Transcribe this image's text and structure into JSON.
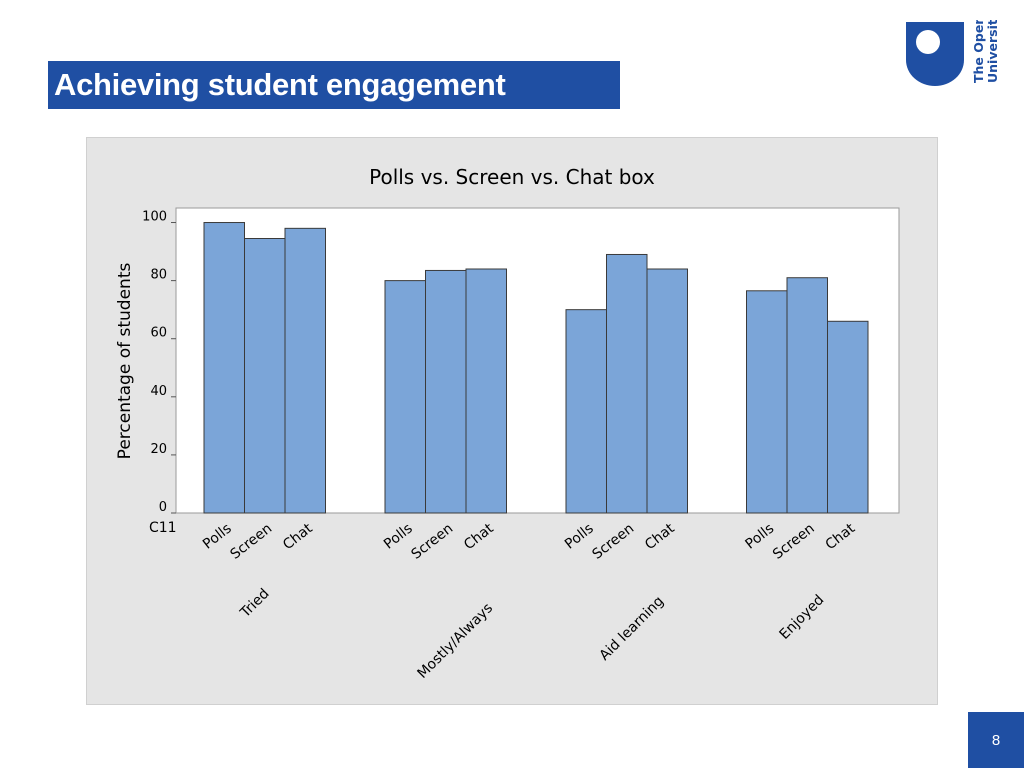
{
  "slide": {
    "title": "Achieving student engagement",
    "page_number": "8",
    "logo_text": [
      "The Open",
      "University"
    ],
    "colors": {
      "brand_blue": "#1f4fa3",
      "bar_fill": "#7ba5d8",
      "panel_bg": "#e5e5e5"
    }
  },
  "chart_data": {
    "type": "bar",
    "title": "Polls vs. Screen vs. Chat box",
    "ylabel": "Percentage of students",
    "xlabel": "C11",
    "ylim": [
      0,
      105
    ],
    "yticks": [
      0,
      20,
      40,
      60,
      80,
      100
    ],
    "grid": false,
    "groups": [
      {
        "name": "Tried",
        "bars": [
          {
            "label": "Polls",
            "value": 100
          },
          {
            "label": "Screen",
            "value": 94.5
          },
          {
            "label": "Chat",
            "value": 98
          }
        ]
      },
      {
        "name": "Mostly/Always",
        "bars": [
          {
            "label": "Polls",
            "value": 80
          },
          {
            "label": "Screen",
            "value": 83.5
          },
          {
            "label": "Chat",
            "value": 84
          }
        ]
      },
      {
        "name": "Aid learning",
        "bars": [
          {
            "label": "Polls",
            "value": 70
          },
          {
            "label": "Screen",
            "value": 89
          },
          {
            "label": "Chat",
            "value": 84
          }
        ]
      },
      {
        "name": "Enjoyed",
        "bars": [
          {
            "label": "Polls",
            "value": 76.5
          },
          {
            "label": "Screen",
            "value": 81
          },
          {
            "label": "Chat",
            "value": 66
          }
        ]
      }
    ]
  }
}
